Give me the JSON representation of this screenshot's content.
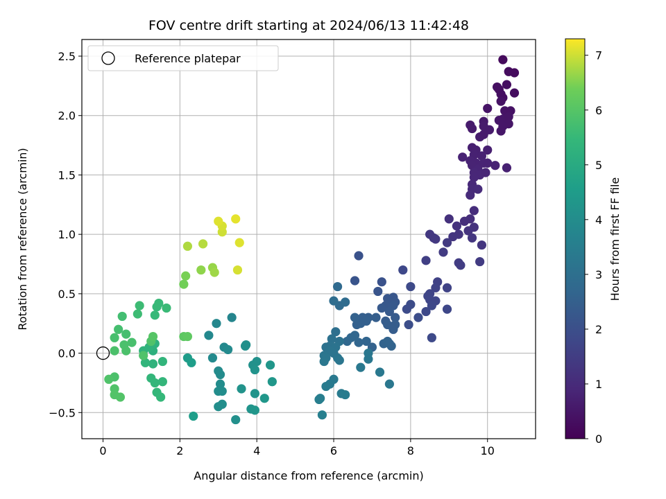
{
  "chart_data": {
    "type": "scatter",
    "title": "FOV centre drift starting at 2024/06/13 11:42:48",
    "xlabel": "Angular distance from reference (arcmin)",
    "ylabel": "Rotation from reference (arcmin)",
    "xlim": [
      -0.55,
      11.25
    ],
    "ylim": [
      -0.72,
      2.64
    ],
    "xticks": [
      0,
      2,
      4,
      6,
      8,
      10
    ],
    "xtick_labels": [
      "0",
      "2",
      "4",
      "6",
      "8",
      "10"
    ],
    "yticks": [
      -0.5,
      0.0,
      0.5,
      1.0,
      1.5,
      2.0,
      2.5
    ],
    "ytick_labels": [
      "−0.5",
      "0.0",
      "0.5",
      "1.0",
      "1.5",
      "2.0",
      "2.5"
    ],
    "grid": true,
    "legend": {
      "placement": "upper-left",
      "entries": [
        {
          "label": "Reference platepar",
          "marker": "open-circle",
          "color": "#000000"
        }
      ]
    },
    "reference_point": {
      "x": 0.0,
      "y": 0.0
    },
    "colorbar": {
      "label": "Hours from first FF file",
      "colormap": "viridis",
      "range": [
        0,
        7.3
      ],
      "ticks": [
        0,
        1,
        2,
        3,
        4,
        5,
        6,
        7
      ],
      "tick_labels": [
        "0",
        "1",
        "2",
        "3",
        "4",
        "5",
        "6",
        "7"
      ]
    },
    "point_fields": [
      "x",
      "y",
      "hours"
    ],
    "points": [
      [
        10.4,
        2.47,
        0.2
      ],
      [
        10.55,
        2.37,
        0.25
      ],
      [
        10.7,
        2.36,
        0.22
      ],
      [
        10.3,
        2.22,
        0.3
      ],
      [
        10.25,
        2.24,
        0.35
      ],
      [
        10.5,
        2.26,
        0.3
      ],
      [
        10.35,
        2.18,
        0.32
      ],
      [
        10.4,
        2.15,
        0.3
      ],
      [
        10.7,
        2.19,
        0.28
      ],
      [
        10.35,
        2.12,
        0.4
      ],
      [
        10.0,
        2.06,
        0.45
      ],
      [
        10.45,
        2.04,
        0.42
      ],
      [
        10.6,
        2.04,
        0.4
      ],
      [
        10.4,
        1.97,
        0.5
      ],
      [
        10.55,
        1.99,
        0.46
      ],
      [
        10.3,
        1.96,
        0.5
      ],
      [
        10.55,
        1.93,
        0.48
      ],
      [
        10.4,
        1.91,
        0.5
      ],
      [
        10.35,
        1.87,
        0.5
      ],
      [
        9.9,
        1.95,
        0.55
      ],
      [
        9.9,
        1.91,
        0.6
      ],
      [
        10.05,
        1.88,
        0.6
      ],
      [
        9.55,
        1.92,
        0.6
      ],
      [
        9.6,
        1.89,
        0.62
      ],
      [
        9.8,
        1.82,
        0.65
      ],
      [
        9.9,
        1.84,
        0.62
      ],
      [
        9.6,
        1.73,
        0.7
      ],
      [
        9.7,
        1.71,
        0.72
      ],
      [
        10.0,
        1.71,
        0.7
      ],
      [
        9.65,
        1.67,
        0.75
      ],
      [
        9.85,
        1.66,
        0.75
      ],
      [
        9.35,
        1.65,
        0.8
      ],
      [
        9.55,
        1.62,
        0.8
      ],
      [
        9.7,
        1.6,
        0.8
      ],
      [
        9.6,
        1.58,
        0.82
      ],
      [
        9.75,
        1.55,
        0.85
      ],
      [
        9.9,
        1.6,
        0.82
      ],
      [
        10.0,
        1.6,
        0.8
      ],
      [
        10.2,
        1.58,
        0.8
      ],
      [
        10.5,
        1.56,
        0.75
      ],
      [
        9.65,
        1.52,
        0.88
      ],
      [
        9.8,
        1.5,
        0.9
      ],
      [
        9.65,
        1.48,
        0.9
      ],
      [
        9.95,
        1.52,
        0.86
      ],
      [
        9.6,
        1.42,
        0.95
      ],
      [
        9.6,
        1.38,
        0.98
      ],
      [
        9.75,
        1.38,
        1.0
      ],
      [
        9.55,
        1.33,
        1.0
      ],
      [
        9.65,
        1.2,
        1.05
      ],
      [
        9.55,
        1.13,
        1.08
      ],
      [
        9.4,
        1.11,
        1.1
      ],
      [
        9.0,
        1.13,
        1.15
      ],
      [
        9.2,
        1.07,
        1.2
      ],
      [
        9.65,
        1.06,
        1.2
      ],
      [
        9.5,
        1.03,
        1.22
      ],
      [
        9.25,
        1.0,
        1.25
      ],
      [
        9.6,
        0.97,
        1.3
      ],
      [
        9.1,
        0.98,
        1.28
      ],
      [
        9.85,
        0.91,
        1.3
      ],
      [
        8.5,
        1.0,
        1.35
      ],
      [
        8.6,
        0.97,
        1.35
      ],
      [
        8.65,
        0.96,
        1.38
      ],
      [
        8.95,
        0.93,
        1.4
      ],
      [
        8.85,
        0.85,
        1.45
      ],
      [
        9.25,
        0.76,
        1.5
      ],
      [
        9.3,
        0.74,
        1.5
      ],
      [
        9.8,
        0.77,
        1.45
      ],
      [
        8.4,
        0.78,
        1.55
      ],
      [
        8.7,
        0.6,
        1.6
      ],
      [
        8.65,
        0.55,
        1.65
      ],
      [
        8.95,
        0.55,
        1.65
      ],
      [
        8.5,
        0.5,
        1.7
      ],
      [
        8.45,
        0.48,
        1.72
      ],
      [
        8.5,
        0.45,
        1.75
      ],
      [
        8.65,
        0.44,
        1.75
      ],
      [
        8.55,
        0.4,
        1.8
      ],
      [
        8.95,
        0.37,
        1.78
      ],
      [
        8.4,
        0.35,
        1.82
      ],
      [
        8.55,
        0.13,
        1.85
      ],
      [
        7.8,
        0.7,
        1.8
      ],
      [
        8.0,
        0.56,
        1.85
      ],
      [
        8.0,
        0.41,
        1.9
      ],
      [
        7.9,
        0.37,
        1.92
      ],
      [
        8.2,
        0.3,
        1.95
      ],
      [
        7.95,
        0.24,
        1.98
      ],
      [
        6.65,
        0.82,
        2.1
      ],
      [
        7.25,
        0.6,
        2.1
      ],
      [
        6.55,
        0.61,
        2.15
      ],
      [
        7.15,
        0.52,
        2.15
      ],
      [
        7.4,
        0.46,
        2.2
      ],
      [
        7.55,
        0.47,
        2.2
      ],
      [
        7.5,
        0.45,
        2.22
      ],
      [
        7.45,
        0.42,
        2.25
      ],
      [
        7.6,
        0.43,
        2.25
      ],
      [
        7.35,
        0.4,
        2.28
      ],
      [
        7.55,
        0.4,
        2.3
      ],
      [
        7.25,
        0.38,
        2.3
      ],
      [
        7.45,
        0.35,
        2.32
      ],
      [
        7.6,
        0.3,
        2.35
      ],
      [
        7.35,
        0.27,
        2.38
      ],
      [
        7.4,
        0.24,
        2.4
      ],
      [
        7.6,
        0.24,
        2.4
      ],
      [
        7.55,
        0.2,
        2.42
      ],
      [
        7.1,
        0.3,
        2.45
      ],
      [
        6.9,
        0.3,
        2.45
      ],
      [
        6.75,
        0.3,
        2.48
      ],
      [
        6.85,
        0.27,
        2.5
      ],
      [
        6.7,
        0.25,
        2.5
      ],
      [
        6.6,
        0.24,
        2.52
      ],
      [
        6.55,
        0.3,
        2.55
      ],
      [
        7.0,
        0.05,
        2.55
      ],
      [
        7.3,
        0.08,
        2.6
      ],
      [
        7.5,
        0.06,
        2.6
      ],
      [
        7.4,
        0.1,
        2.62
      ],
      [
        7.45,
        0.08,
        2.63
      ],
      [
        6.85,
        0.1,
        2.65
      ],
      [
        6.65,
        0.09,
        2.68
      ],
      [
        6.55,
        0.15,
        2.7
      ],
      [
        6.45,
        0.13,
        2.72
      ],
      [
        6.35,
        0.1,
        2.74
      ],
      [
        6.1,
        0.56,
        2.8
      ],
      [
        6.15,
        0.4,
        2.85
      ],
      [
        6.3,
        0.43,
        2.88
      ],
      [
        6.0,
        0.44,
        2.9
      ],
      [
        6.05,
        0.18,
        3.0
      ],
      [
        5.95,
        0.12,
        3.05
      ],
      [
        6.15,
        0.1,
        3.05
      ],
      [
        5.9,
        0.06,
        3.1
      ],
      [
        5.8,
        0.05,
        3.1
      ],
      [
        6.05,
        0.05,
        3.12
      ],
      [
        5.9,
        0.02,
        3.15
      ],
      [
        6.0,
        0.0,
        3.15
      ],
      [
        5.75,
        -0.02,
        3.2
      ],
      [
        6.1,
        -0.04,
        3.2
      ],
      [
        6.15,
        -0.06,
        3.22
      ],
      [
        5.8,
        -0.04,
        3.22
      ],
      [
        5.75,
        -0.07,
        3.25
      ],
      [
        6.9,
        0.0,
        3.25
      ],
      [
        6.9,
        -0.05,
        3.28
      ],
      [
        6.7,
        -0.12,
        3.3
      ],
      [
        7.2,
        -0.16,
        3.3
      ],
      [
        7.45,
        -0.26,
        3.25
      ],
      [
        6.0,
        -0.22,
        3.35
      ],
      [
        5.9,
        -0.26,
        3.38
      ],
      [
        5.8,
        -0.28,
        3.4
      ],
      [
        6.2,
        -0.34,
        3.42
      ],
      [
        6.3,
        -0.35,
        3.45
      ],
      [
        5.65,
        -0.38,
        3.5
      ],
      [
        5.62,
        -0.39,
        3.52
      ],
      [
        5.7,
        -0.52,
        3.55
      ],
      [
        3.35,
        0.3,
        3.75
      ],
      [
        2.95,
        0.25,
        3.8
      ],
      [
        2.75,
        0.15,
        3.85
      ],
      [
        3.15,
        0.05,
        3.85
      ],
      [
        2.85,
        -0.04,
        3.9
      ],
      [
        3.25,
        0.03,
        3.92
      ],
      [
        3.0,
        -0.15,
        3.95
      ],
      [
        3.05,
        -0.18,
        3.95
      ],
      [
        3.05,
        -0.26,
        3.98
      ],
      [
        3.0,
        -0.32,
        4.0
      ],
      [
        3.1,
        -0.32,
        4.02
      ],
      [
        3.0,
        -0.45,
        4.05
      ],
      [
        3.1,
        -0.43,
        4.05
      ],
      [
        3.45,
        -0.56,
        4.1
      ],
      [
        3.9,
        -0.1,
        4.15
      ],
      [
        4.0,
        -0.07,
        4.15
      ],
      [
        3.95,
        -0.14,
        4.2
      ],
      [
        3.6,
        -0.3,
        4.2
      ],
      [
        3.95,
        -0.34,
        4.25
      ],
      [
        3.85,
        -0.47,
        4.25
      ],
      [
        3.95,
        -0.48,
        4.3
      ],
      [
        3.7,
        0.06,
        4.1
      ],
      [
        3.72,
        0.07,
        4.12
      ],
      [
        4.35,
        -0.1,
        4.3
      ],
      [
        4.4,
        -0.24,
        4.35
      ],
      [
        4.2,
        -0.38,
        4.35
      ],
      [
        2.2,
        -0.04,
        4.5
      ],
      [
        2.3,
        -0.08,
        4.55
      ],
      [
        2.35,
        -0.53,
        4.55
      ],
      [
        1.05,
        0.02,
        5.3
      ],
      [
        1.3,
        0.02,
        5.2
      ],
      [
        1.35,
        0.08,
        5.25
      ],
      [
        1.2,
        0.05,
        5.3
      ],
      [
        1.3,
        -0.09,
        5.3
      ],
      [
        1.1,
        -0.08,
        5.35
      ],
      [
        1.55,
        -0.07,
        5.35
      ],
      [
        1.25,
        -0.21,
        5.4
      ],
      [
        1.35,
        -0.25,
        5.42
      ],
      [
        1.55,
        -0.24,
        5.42
      ],
      [
        1.4,
        -0.33,
        5.45
      ],
      [
        1.5,
        -0.37,
        5.48
      ],
      [
        1.35,
        0.32,
        5.5
      ],
      [
        1.4,
        0.39,
        5.5
      ],
      [
        1.45,
        0.42,
        5.52
      ],
      [
        1.65,
        0.38,
        5.55
      ],
      [
        0.95,
        0.4,
        5.6
      ],
      [
        0.9,
        0.33,
        5.62
      ],
      [
        0.5,
        0.31,
        5.7
      ],
      [
        0.4,
        0.2,
        5.75
      ],
      [
        0.6,
        0.16,
        5.75
      ],
      [
        0.3,
        0.13,
        5.78
      ],
      [
        0.75,
        0.09,
        5.8
      ],
      [
        0.55,
        0.07,
        5.82
      ],
      [
        0.6,
        0.02,
        5.85
      ],
      [
        0.3,
        0.02,
        5.85
      ],
      [
        1.05,
        -0.02,
        5.9
      ],
      [
        0.3,
        -0.2,
        5.85
      ],
      [
        0.15,
        -0.22,
        5.9
      ],
      [
        0.3,
        -0.3,
        5.92
      ],
      [
        0.3,
        -0.35,
        5.95
      ],
      [
        0.45,
        -0.37,
        5.95
      ],
      [
        1.25,
        0.1,
        5.9
      ],
      [
        1.3,
        0.14,
        6.0
      ],
      [
        2.1,
        0.14,
        6.1
      ],
      [
        2.2,
        0.14,
        6.15
      ],
      [
        2.1,
        0.58,
        6.4
      ],
      [
        2.15,
        0.65,
        6.45
      ],
      [
        2.55,
        0.7,
        6.6
      ],
      [
        2.85,
        0.72,
        6.65
      ],
      [
        2.9,
        0.68,
        6.7
      ],
      [
        2.2,
        0.9,
        6.8
      ],
      [
        2.6,
        0.92,
        6.85
      ],
      [
        3.1,
        1.02,
        7.0
      ],
      [
        3.1,
        1.07,
        7.05
      ],
      [
        3.0,
        1.11,
        7.1
      ],
      [
        3.45,
        1.13,
        7.15
      ],
      [
        3.5,
        0.7,
        7.05
      ],
      [
        3.55,
        0.93,
        7.1
      ]
    ]
  }
}
